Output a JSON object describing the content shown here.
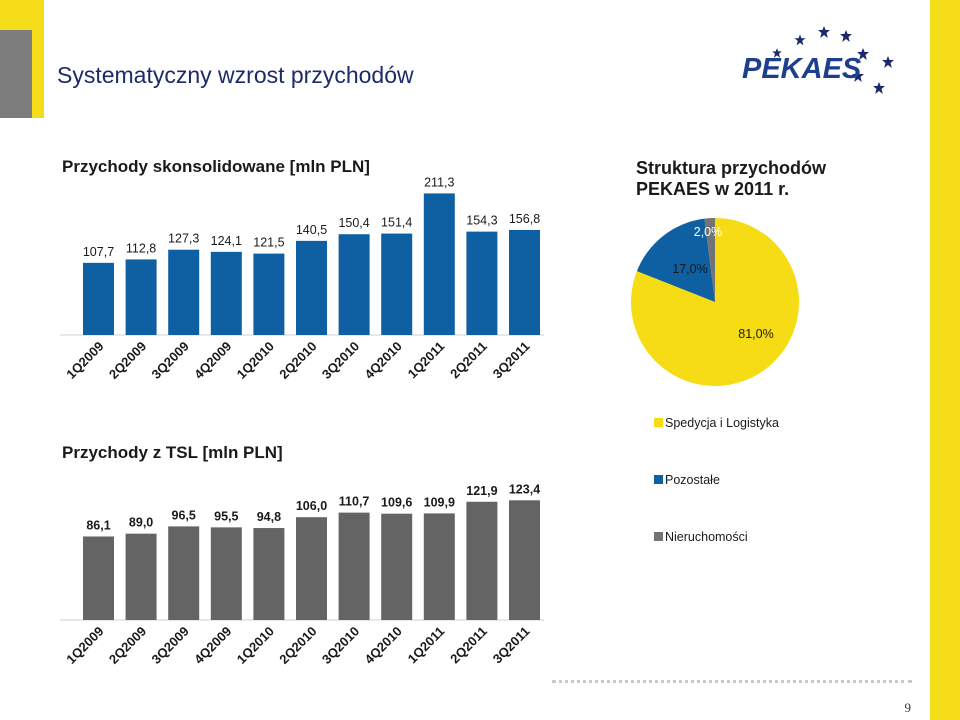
{
  "page_title": "Systematyczny  wzrost przychodów",
  "logo": {
    "text": "PEKAES",
    "icon": "stars-logo-icon"
  },
  "colors": {
    "bar_blue": "#0f5fa3",
    "bar_grey": "#646464",
    "yellow": "#f5dc14",
    "grey": "#737373",
    "dark_blue": "#1c2a6b"
  },
  "chart_data": [
    {
      "type": "bar",
      "title": "Przychody skonsolidowane [mln PLN]",
      "categories": [
        "1Q2009",
        "2Q2009",
        "3Q2009",
        "4Q2009",
        "1Q2010",
        "2Q2010",
        "3Q2010",
        "4Q2010",
        "1Q2011",
        "2Q2011",
        "3Q2011"
      ],
      "values": [
        107.7,
        112.8,
        127.3,
        124.1,
        121.5,
        140.5,
        150.4,
        151.4,
        211.3,
        154.3,
        156.8
      ],
      "labels": [
        "107,7",
        "112,8",
        "127,3",
        "124,1",
        "121,5",
        "140,5",
        "150,4",
        "151,4",
        "211,3",
        "154,3",
        "156,8"
      ],
      "color": "#0f5fa3"
    },
    {
      "type": "bar",
      "title": "Przychody z TSL [mln PLN]",
      "categories": [
        "1Q2009",
        "2Q2009",
        "3Q2009",
        "4Q2009",
        "1Q2010",
        "2Q2010",
        "3Q2010",
        "4Q2010",
        "1Q2011",
        "2Q2011",
        "3Q2011"
      ],
      "values": [
        86.1,
        89.0,
        96.5,
        95.5,
        94.8,
        106.0,
        110.7,
        109.6,
        109.9,
        121.9,
        123.4
      ],
      "labels": [
        "86,1",
        "89,0",
        "96,5",
        "95,5",
        "94,8",
        "106,0",
        "110,7",
        "109,6",
        "109,9",
        "121,9",
        "123,4"
      ],
      "color": "#646464"
    },
    {
      "type": "pie",
      "title": "Struktura przychodów PEKAES w 2011 r.",
      "series": [
        {
          "name": "Spedycja i Logistyka",
          "value": 81.0,
          "label": "81,0%",
          "color": "#f5dc14"
        },
        {
          "name": "Pozostałe",
          "value": 17.0,
          "label": "17,0%",
          "color": "#0f5fa3"
        },
        {
          "name": "Nieruchomości",
          "value": 2.0,
          "label": "2,0%",
          "color": "#737373"
        }
      ]
    }
  ],
  "page_number": "9"
}
